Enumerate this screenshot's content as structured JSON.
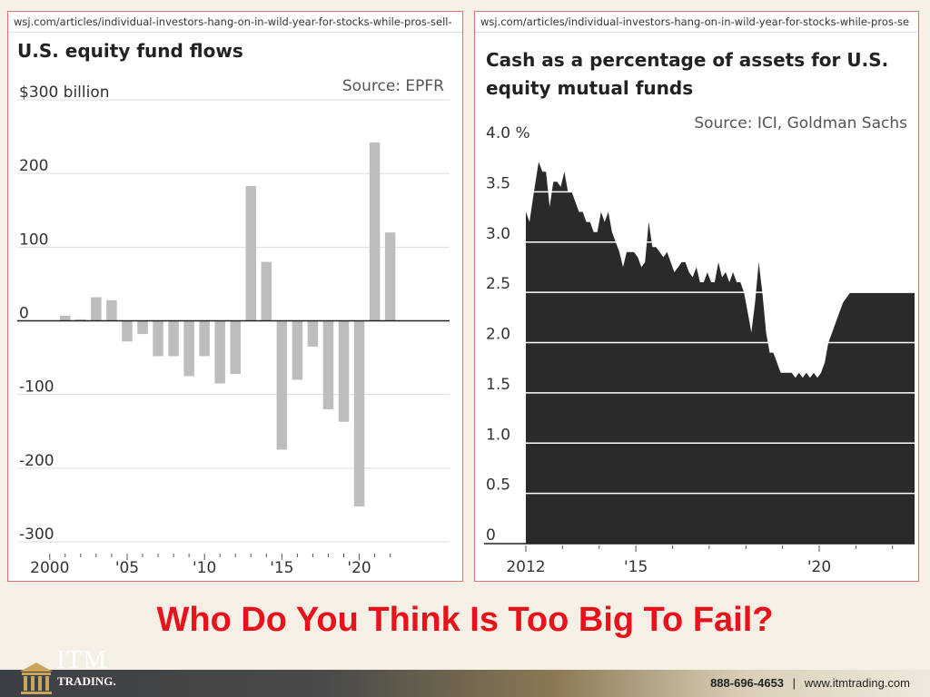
{
  "left_panel": {
    "url": "wsj.com/articles/individual-investors-hang-on-in-wild-year-for-stocks-while-pros-sell-",
    "title": "U.S. equity fund flows",
    "source": "Source: EPFR"
  },
  "right_panel": {
    "url": "wsj.com/articles/individual-investors-hang-on-in-wild-year-for-stocks-while-pros-se",
    "title_line1": "Cash as a percentage of assets for U.S.",
    "title_line2": "equity mutual funds",
    "source": "Source: ICI, Goldman Sachs"
  },
  "headline": "Who Do You Think Is Too Big To Fail?",
  "footer": {
    "logo_text": "ITM",
    "logo_sub": "TRADING.",
    "phone": "888-696-4653",
    "separator": "|",
    "website": "www.itmtrading.com"
  },
  "colors": {
    "bar": "#bdbdbd",
    "area": "#2a2a2a",
    "headline": "#e8121b",
    "border": "#e07070"
  },
  "chart_data": [
    {
      "type": "bar",
      "title": "U.S. equity fund flows",
      "unit": "$ billion",
      "y_tick_labels": [
        "$300 billion",
        "200",
        "100",
        "0",
        "-100",
        "-200",
        "-300"
      ],
      "y_ticks": [
        300,
        200,
        100,
        0,
        -100,
        -200,
        -300
      ],
      "ylim": [
        -300,
        300
      ],
      "x_tick_labels": [
        "2000",
        "'05",
        "'10",
        "'15",
        "'20"
      ],
      "x_ticks": [
        2000,
        2005,
        2010,
        2015,
        2020
      ],
      "categories": [
        2001,
        2002,
        2003,
        2004,
        2005,
        2006,
        2007,
        2008,
        2009,
        2010,
        2011,
        2012,
        2013,
        2014,
        2015,
        2016,
        2017,
        2018,
        2019,
        2020,
        2021,
        2022
      ],
      "values": [
        7,
        2,
        32,
        28,
        -28,
        -18,
        -48,
        -48,
        -75,
        -48,
        -85,
        -72,
        183,
        80,
        -175,
        -80,
        -35,
        -120,
        -137,
        -252,
        242,
        120
      ],
      "grid": true,
      "source": "Source: EPFR"
    },
    {
      "type": "area",
      "title": "Cash as a percentage of assets for U.S. equity mutual funds",
      "unit": "%",
      "y_tick_labels": [
        "4.0 %",
        "3.5",
        "3.0",
        "2.5",
        "2.0",
        "1.5",
        "1.0",
        "0.5",
        "0"
      ],
      "y_ticks": [
        4.0,
        3.5,
        3.0,
        2.5,
        2.0,
        1.5,
        1.0,
        0.5,
        0
      ],
      "ylim": [
        0,
        4.0
      ],
      "x_tick_labels": [
        "2012",
        "'15",
        "'20"
      ],
      "x_ticks": [
        2012,
        2015,
        2020
      ],
      "x": [
        2012.0,
        2012.1,
        2012.2,
        2012.35,
        2012.45,
        2012.55,
        2012.65,
        2012.75,
        2012.85,
        2012.95,
        2013.05,
        2013.15,
        2013.25,
        2013.45,
        2013.55,
        2013.65,
        2013.75,
        2013.85,
        2013.95,
        2014.05,
        2014.15,
        2014.25,
        2014.35,
        2014.45,
        2014.55,
        2014.65,
        2014.75,
        2014.85,
        2014.95,
        2015.05,
        2015.15,
        2015.25,
        2015.35,
        2015.45,
        2015.55,
        2015.65,
        2015.75,
        2015.85,
        2015.95,
        2016.05,
        2016.15,
        2016.25,
        2016.35,
        2016.45,
        2016.55,
        2016.65,
        2016.75,
        2016.85,
        2016.95,
        2017.05,
        2017.15,
        2017.25,
        2017.35,
        2017.45,
        2017.55,
        2017.65,
        2017.75,
        2017.85,
        2017.95,
        2018.05,
        2018.15,
        2018.25,
        2018.35,
        2018.45,
        2018.55,
        2018.65,
        2018.75,
        2018.85,
        2018.95,
        2019.05,
        2019.15,
        2019.25,
        2019.35,
        2019.45,
        2019.55,
        2019.65,
        2019.75,
        2019.85,
        2019.95,
        2020.05,
        2020.15,
        2020.25,
        2020.35,
        2020.45,
        2020.55,
        2020.65,
        2020.75,
        2020.85,
        2020.95,
        2021.05,
        2021.15,
        2021.25,
        2021.35,
        2021.45,
        2021.55,
        2021.65,
        2021.75,
        2021.85,
        2021.95,
        2022.05,
        2022.15,
        2022.25,
        2022.35,
        2022.45,
        2022.6
      ],
      "y": [
        3.3,
        3.2,
        3.45,
        3.8,
        3.7,
        3.7,
        3.35,
        3.6,
        3.6,
        3.55,
        3.7,
        3.5,
        3.5,
        3.3,
        3.3,
        3.2,
        3.2,
        3.1,
        3.1,
        3.3,
        3.2,
        3.3,
        3.1,
        3.0,
        2.9,
        2.75,
        2.9,
        2.9,
        2.9,
        2.85,
        2.75,
        2.8,
        3.2,
        2.95,
        2.95,
        2.9,
        2.85,
        2.9,
        2.8,
        2.7,
        2.75,
        2.8,
        2.8,
        2.7,
        2.65,
        2.75,
        2.6,
        2.6,
        2.7,
        2.6,
        2.6,
        2.8,
        2.65,
        2.7,
        2.6,
        2.7,
        2.6,
        2.6,
        2.5,
        2.3,
        2.1,
        2.4,
        2.8,
        2.5,
        2.1,
        1.9,
        1.9,
        1.8,
        1.7,
        1.7,
        1.7,
        1.7,
        1.65,
        1.7,
        1.65,
        1.7,
        1.65,
        1.7,
        1.65,
        1.7,
        1.8,
        2.0,
        2.1,
        2.2,
        2.3,
        2.4,
        2.45,
        2.5,
        2.5,
        2.5,
        2.5,
        2.5,
        2.5,
        2.5,
        2.5,
        2.5,
        2.5,
        2.5,
        2.5,
        2.5,
        2.5,
        2.5,
        2.5,
        2.5,
        2.5
      ],
      "grid": true,
      "source": "Source: ICI, Goldman Sachs"
    }
  ]
}
